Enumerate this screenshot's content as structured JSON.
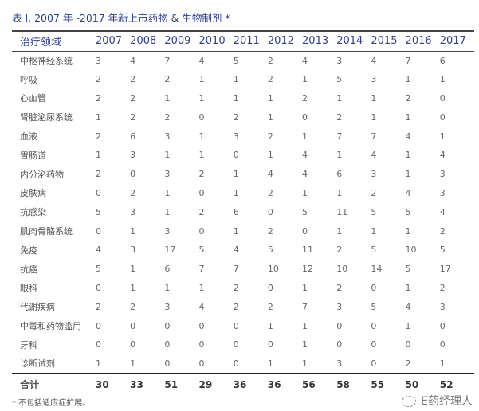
{
  "title": "表 I. 2007 年 -2017 年新上市药物 & 生物制剂 *",
  "header": [
    "治疗领域",
    "2007",
    "2008",
    "2009",
    "2010",
    "2011",
    "2012",
    "2013",
    "2014",
    "2015",
    "2016",
    "2017"
  ],
  "rows": [
    {
      "label": "中枢神经系统",
      "values": [
        3,
        4,
        7,
        4,
        5,
        2,
        4,
        3,
        4,
        7,
        6
      ]
    },
    {
      "label": "呼吸",
      "values": [
        2,
        2,
        2,
        1,
        1,
        2,
        1,
        5,
        3,
        1,
        1
      ]
    },
    {
      "label": "心血管",
      "values": [
        2,
        2,
        1,
        1,
        1,
        1,
        2,
        1,
        1,
        2,
        0
      ]
    },
    {
      "label": "肾脏泌尿系统",
      "values": [
        1,
        2,
        2,
        0,
        2,
        1,
        0,
        2,
        1,
        1,
        0
      ]
    },
    {
      "label": "血液",
      "values": [
        2,
        6,
        3,
        1,
        3,
        2,
        1,
        7,
        7,
        4,
        1
      ]
    },
    {
      "label": "胃肠道",
      "values": [
        1,
        3,
        1,
        1,
        0,
        1,
        4,
        1,
        4,
        1,
        4
      ]
    },
    {
      "label": "内分泌药物",
      "values": [
        2,
        0,
        3,
        2,
        1,
        4,
        4,
        6,
        3,
        1,
        3
      ]
    },
    {
      "label": "皮肤病",
      "values": [
        0,
        2,
        1,
        0,
        1,
        2,
        1,
        1,
        2,
        4,
        3
      ]
    },
    {
      "label": "抗感染",
      "values": [
        5,
        3,
        1,
        2,
        6,
        0,
        5,
        11,
        5,
        5,
        4
      ]
    },
    {
      "label": "肌肉骨骼系统",
      "values": [
        0,
        1,
        3,
        0,
        1,
        2,
        0,
        1,
        1,
        1,
        2
      ]
    },
    {
      "label": "免疫",
      "values": [
        4,
        3,
        17,
        5,
        4,
        5,
        11,
        2,
        5,
        10,
        5
      ]
    },
    {
      "label": "抗癌",
      "values": [
        5,
        1,
        6,
        7,
        7,
        10,
        12,
        10,
        14,
        5,
        17
      ]
    },
    {
      "label": "眼科",
      "values": [
        0,
        1,
        1,
        1,
        2,
        0,
        1,
        2,
        0,
        1,
        2
      ]
    },
    {
      "label": "代谢疾病",
      "values": [
        2,
        2,
        3,
        4,
        2,
        2,
        7,
        3,
        5,
        4,
        3
      ]
    },
    {
      "label": "中毒和药物滥用",
      "values": [
        0,
        0,
        0,
        0,
        0,
        1,
        1,
        0,
        0,
        1,
        0
      ]
    },
    {
      "label": "牙科",
      "values": [
        0,
        0,
        0,
        0,
        0,
        0,
        1,
        0,
        0,
        0,
        0
      ]
    },
    {
      "label": "诊断试剂",
      "values": [
        1,
        1,
        0,
        0,
        0,
        1,
        1,
        3,
        0,
        2,
        1
      ]
    }
  ],
  "total": {
    "label": "合计",
    "values": [
      30,
      33,
      51,
      29,
      36,
      36,
      56,
      58,
      55,
      50,
      52
    ]
  },
  "footnote": "* 不包括适应症扩展。",
  "watermark": "E药经理人",
  "colors": {
    "header_text": "#2e3f8f"
  }
}
